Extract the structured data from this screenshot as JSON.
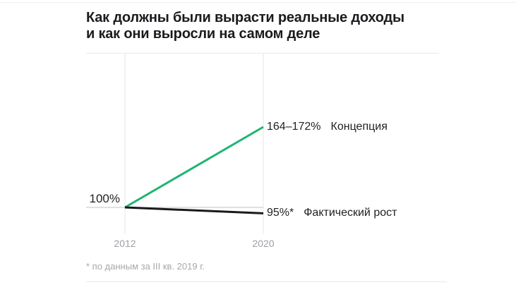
{
  "header": {
    "title_lines": [
      "Как должны были вырасти реальные доходы",
      "и как они выросли на самом деле"
    ]
  },
  "chart_data": {
    "type": "line",
    "title": "Как должны были вырасти реальные доходы и как они выросли на самом деле",
    "x": [
      2012,
      2020
    ],
    "x_tick_labels": [
      "2012",
      "2020"
    ],
    "baseline": {
      "value": 100,
      "label": "100%"
    },
    "series": [
      {
        "name": "Концепция",
        "values": [
          100,
          168
        ],
        "end_label": "164–172%",
        "color": "#1eb573"
      },
      {
        "name": "Фактический рост",
        "values": [
          100,
          95
        ],
        "end_label": "95%*",
        "color": "#1a1a1c"
      }
    ],
    "footnote": "* по данным за III кв. 2019 г.",
    "grid": "vertical gridlines at each x tick, horizontal baseline at 100%",
    "legend_position": "end-of-line labels",
    "ylim": [
      90,
      185
    ]
  },
  "style": {
    "accent_green": "#1eb573",
    "line_black": "#1a1a1c",
    "gridline_color": "#e8e6e7",
    "baseline_color": "#d8d6d7",
    "muted_text": "#9da0a6",
    "footnote_text": "#a6a8ae",
    "title_text": "#1a1b1e"
  }
}
